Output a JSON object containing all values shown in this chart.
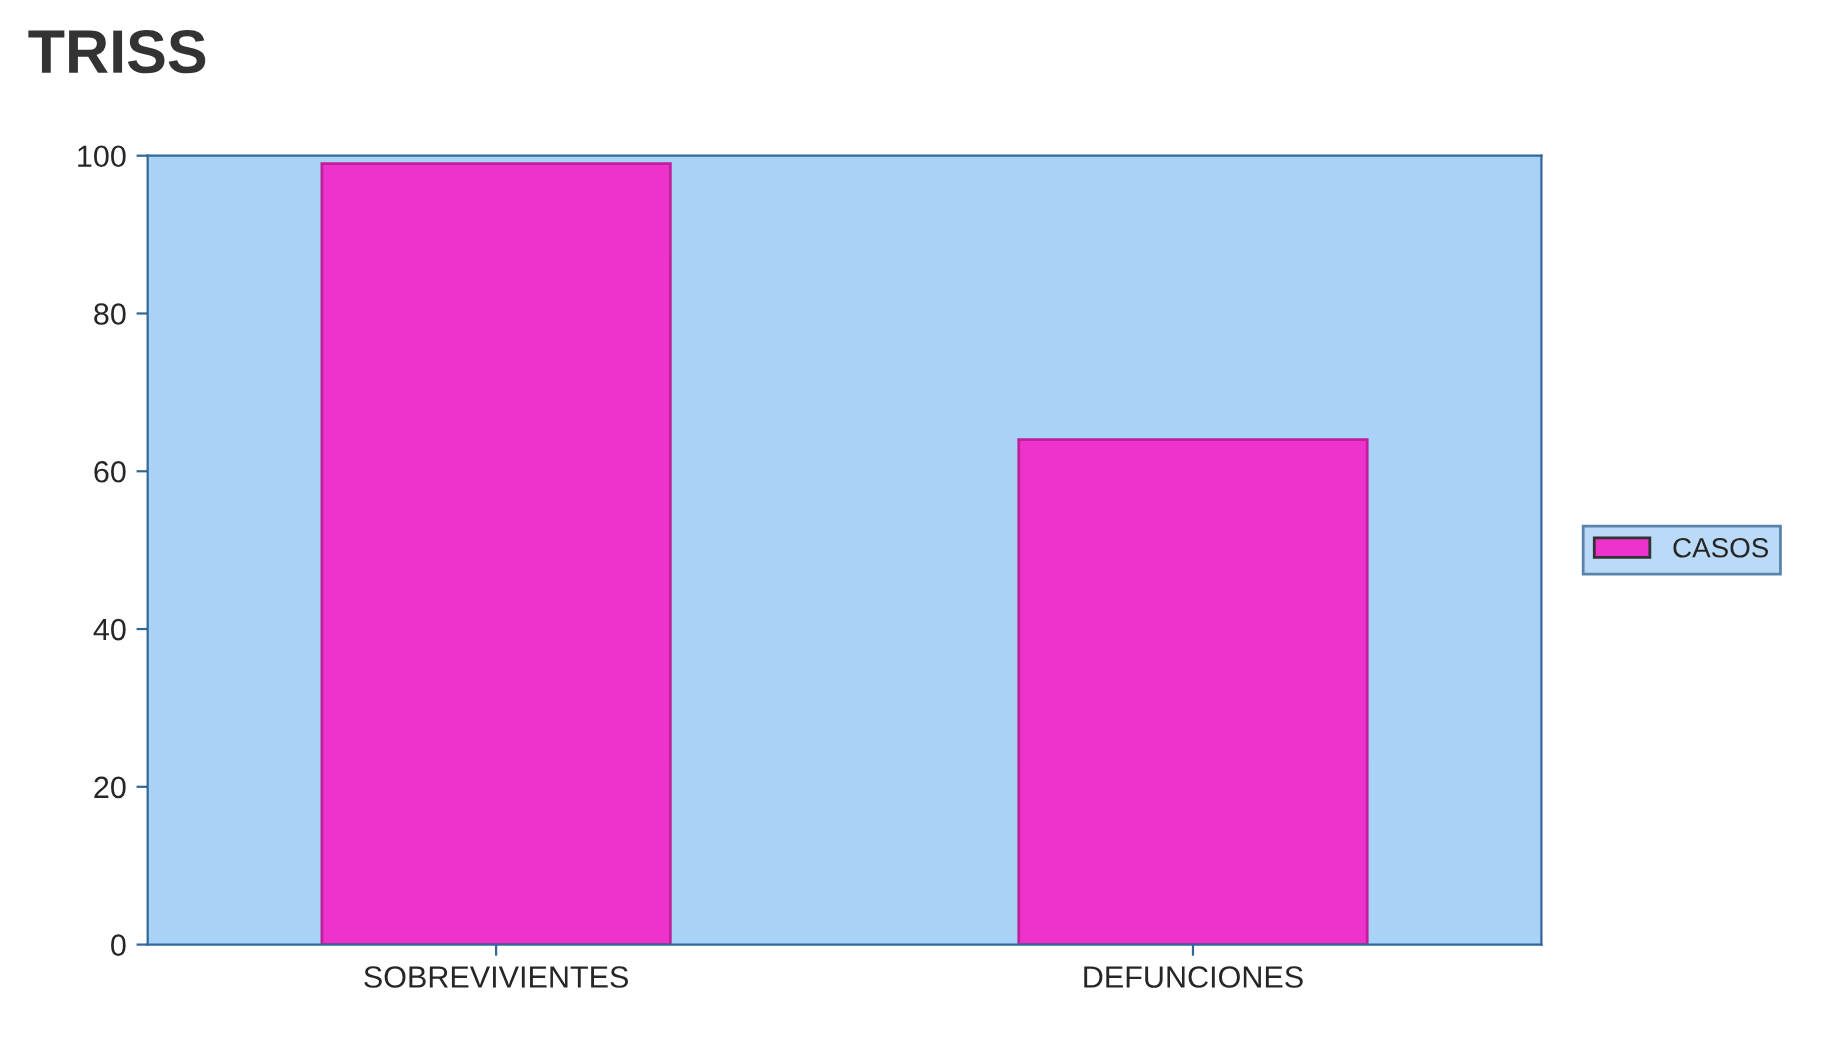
{
  "chart_data": {
    "type": "bar",
    "title": "TRISS",
    "categories": [
      "SOBREVIVIENTES",
      "DEFUNCIONES"
    ],
    "series": [
      {
        "name": "CASOS",
        "color": "#ee33cc",
        "values": [
          99,
          64
        ]
      }
    ],
    "ylim": [
      0,
      100
    ],
    "yticks": [
      0,
      20,
      40,
      60,
      80,
      100
    ],
    "grid": false,
    "legend": "right"
  }
}
